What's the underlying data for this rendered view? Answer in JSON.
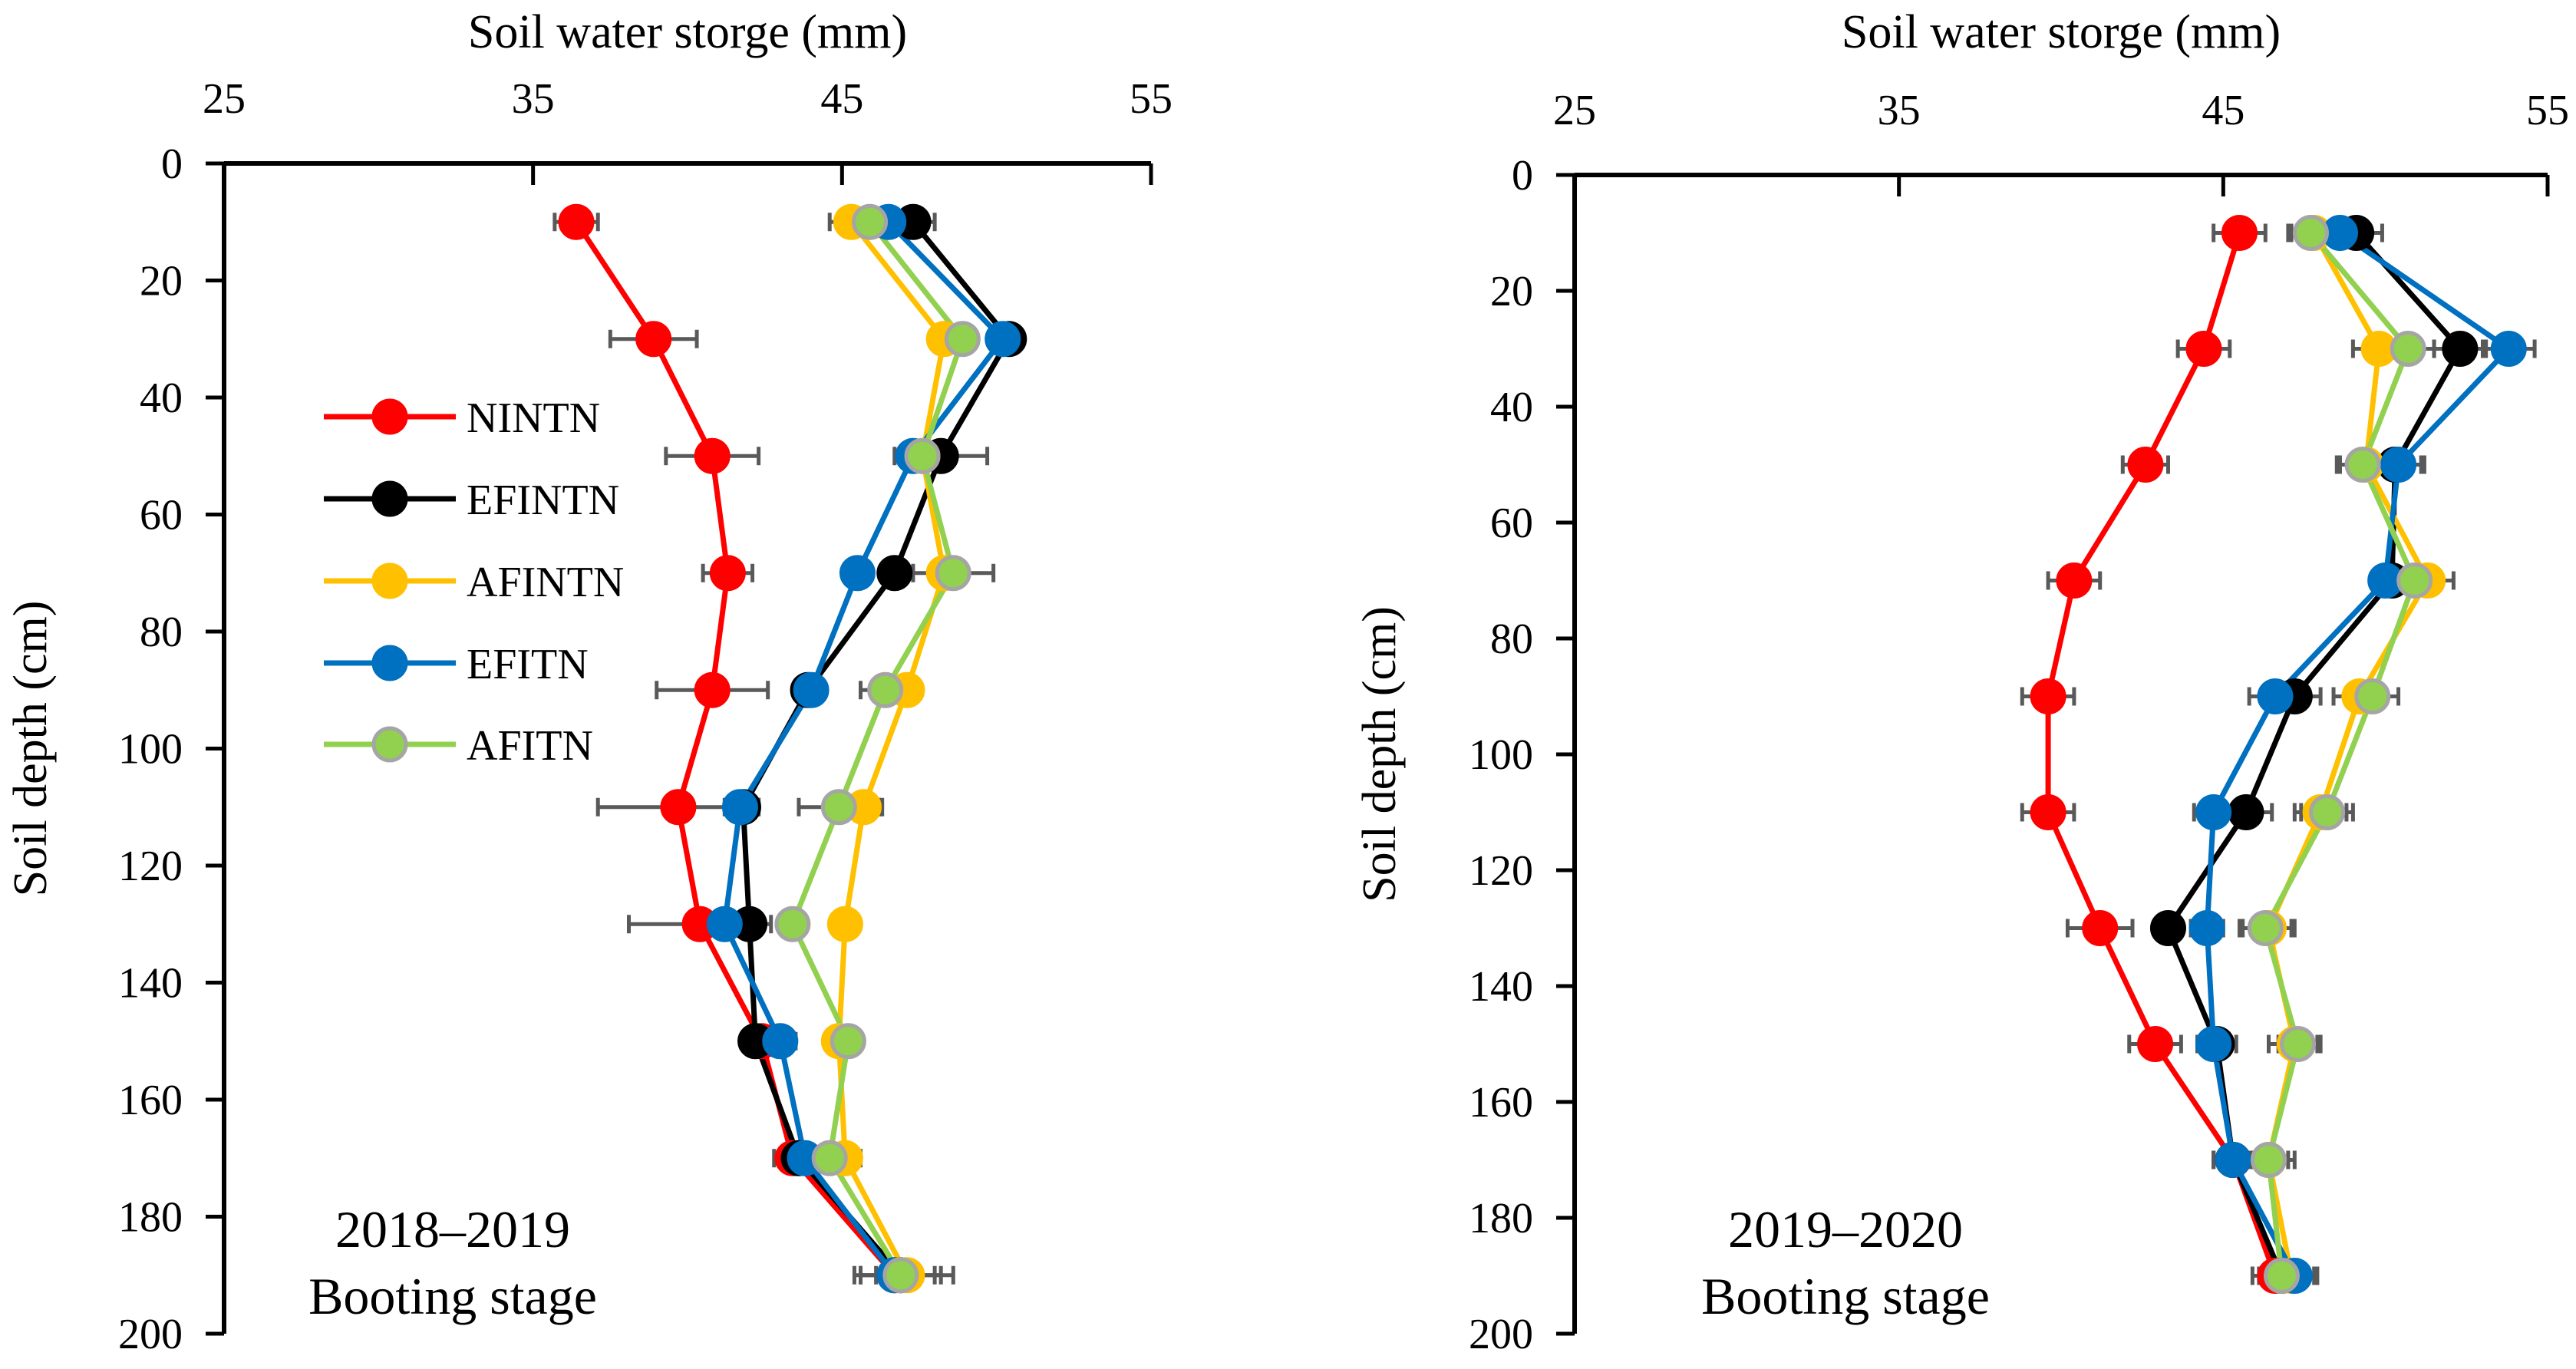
{
  "figure": {
    "panels": 2,
    "legend": [
      {
        "name": "NINTN",
        "color": "#ff0000"
      },
      {
        "name": "EFINTN",
        "color": "#000000"
      },
      {
        "name": "AFINTN",
        "color": "#ffc000"
      },
      {
        "name": "EFITN",
        "color": "#0070c0"
      },
      {
        "name": "AFITN",
        "color": "#92d050"
      }
    ],
    "marker_edge_colors": {
      "NINTN": "#ff0000",
      "EFINTN": "#000000",
      "AFINTN": "#ffc000",
      "EFITN": "#0070c0",
      "AFITN": "#a5a5a5"
    },
    "errorbar_color": "#595959"
  },
  "chart_data": [
    {
      "type": "line",
      "title": "",
      "xlabel": "Soil water storge (mm)",
      "ylabel": "Soil depth (cm)",
      "xlim": [
        25,
        55
      ],
      "ylim": [
        0,
        200
      ],
      "x_ticks": [
        "25",
        "35",
        "45",
        "55"
      ],
      "y_ticks": [
        "0",
        "20",
        "40",
        "60",
        "80",
        "100",
        "120",
        "140",
        "160",
        "180",
        "200"
      ],
      "y_inverted": true,
      "x_axis_position": "top",
      "legend_position": "upper-left",
      "annotation": [
        "2018–2019",
        "Booting stage"
      ],
      "depth": [
        10,
        30,
        50,
        70,
        90,
        110,
        130,
        150,
        170,
        190
      ],
      "series": [
        {
          "name": "NINTN",
          "values": [
            36.4,
            38.9,
            40.8,
            41.3,
            40.8,
            39.7,
            40.4,
            42.4,
            43.4,
            46.7
          ],
          "errors": [
            0.7,
            1.4,
            1.5,
            0.8,
            1.8,
            2.6,
            2.3,
            0.5,
            0.6,
            1.3
          ]
        },
        {
          "name": "EFINTN",
          "values": [
            47.3,
            50.4,
            48.2,
            46.7,
            43.9,
            41.8,
            42.0,
            42.2,
            43.6,
            46.9
          ],
          "errors": [
            0.7,
            0.4,
            1.5,
            0.4,
            0.4,
            0.5,
            0.4,
            0.4,
            0.5,
            1.3
          ]
        },
        {
          "name": "AFINTN",
          "values": [
            45.3,
            48.3,
            47.6,
            48.3,
            47.1,
            45.7,
            45.1,
            44.9,
            45.1,
            47.1
          ],
          "errors": [
            0.7,
            0.4,
            0.4,
            0.4,
            0.4,
            0.6,
            0.4,
            0.4,
            0.5,
            1.5
          ]
        },
        {
          "name": "EFITN",
          "values": [
            46.5,
            50.2,
            47.3,
            45.5,
            44.0,
            41.7,
            41.2,
            43.0,
            43.8,
            46.7
          ],
          "errors": [
            0.7,
            0.4,
            0.4,
            0.4,
            0.4,
            0.5,
            0.4,
            0.5,
            0.5,
            0.6
          ]
        },
        {
          "name": "AFITN",
          "values": [
            45.9,
            48.9,
            47.6,
            48.6,
            46.4,
            44.9,
            43.4,
            45.2,
            44.6,
            46.9
          ],
          "errors": [
            0.7,
            0.4,
            0.4,
            1.3,
            0.8,
            1.3,
            0.4,
            0.4,
            0.4,
            0.5
          ]
        }
      ]
    },
    {
      "type": "line",
      "title": "",
      "xlabel": "Soil water storge (mm)",
      "ylabel": "Soil depth (cm)",
      "xlim": [
        25,
        55
      ],
      "ylim": [
        0,
        200
      ],
      "x_ticks": [
        "25",
        "35",
        "45",
        "55"
      ],
      "y_ticks": [
        "0",
        "20",
        "40",
        "60",
        "80",
        "100",
        "120",
        "140",
        "160",
        "180",
        "200"
      ],
      "y_inverted": true,
      "x_axis_position": "top",
      "legend_position": "none",
      "annotation": [
        "2019–2020",
        "Booting stage"
      ],
      "depth": [
        10,
        30,
        50,
        70,
        90,
        110,
        130,
        150,
        170,
        190
      ],
      "series": [
        {
          "name": "NINTN",
          "values": [
            45.5,
            44.4,
            42.6,
            40.4,
            39.6,
            39.6,
            41.2,
            42.9,
            45.3,
            46.6
          ],
          "errors": [
            0.8,
            0.8,
            0.7,
            0.8,
            0.8,
            0.8,
            1.0,
            0.8,
            0.6,
            0.7
          ]
        },
        {
          "name": "EFINTN",
          "values": [
            49.1,
            52.3,
            50.3,
            50.2,
            47.2,
            45.7,
            43.3,
            44.8,
            45.3,
            46.8
          ],
          "errors": [
            0.8,
            0.8,
            0.8,
            0.4,
            0.8,
            0.8,
            0.4,
            0.6,
            0.6,
            0.7
          ]
        },
        {
          "name": "AFINTN",
          "values": [
            47.8,
            49.8,
            49.4,
            51.3,
            49.2,
            48.0,
            46.4,
            47.2,
            46.4,
            47.1
          ],
          "errors": [
            0.8,
            0.8,
            0.8,
            0.8,
            0.8,
            0.8,
            0.8,
            0.8,
            0.8,
            0.7
          ]
        },
        {
          "name": "EFITN",
          "values": [
            48.6,
            53.8,
            50.4,
            50.0,
            46.6,
            44.7,
            44.5,
            44.7,
            45.3,
            47.2
          ],
          "errors": [
            0.8,
            0.8,
            0.8,
            0.4,
            0.8,
            0.6,
            0.5,
            0.5,
            0.6,
            0.7
          ]
        },
        {
          "name": "AFITN",
          "values": [
            47.7,
            50.7,
            49.3,
            50.9,
            49.6,
            48.2,
            46.3,
            47.3,
            46.4,
            46.8
          ],
          "errors": [
            0.6,
            0.8,
            0.8,
            0.5,
            0.8,
            0.8,
            0.8,
            0.6,
            0.6,
            0.5
          ]
        }
      ]
    }
  ]
}
